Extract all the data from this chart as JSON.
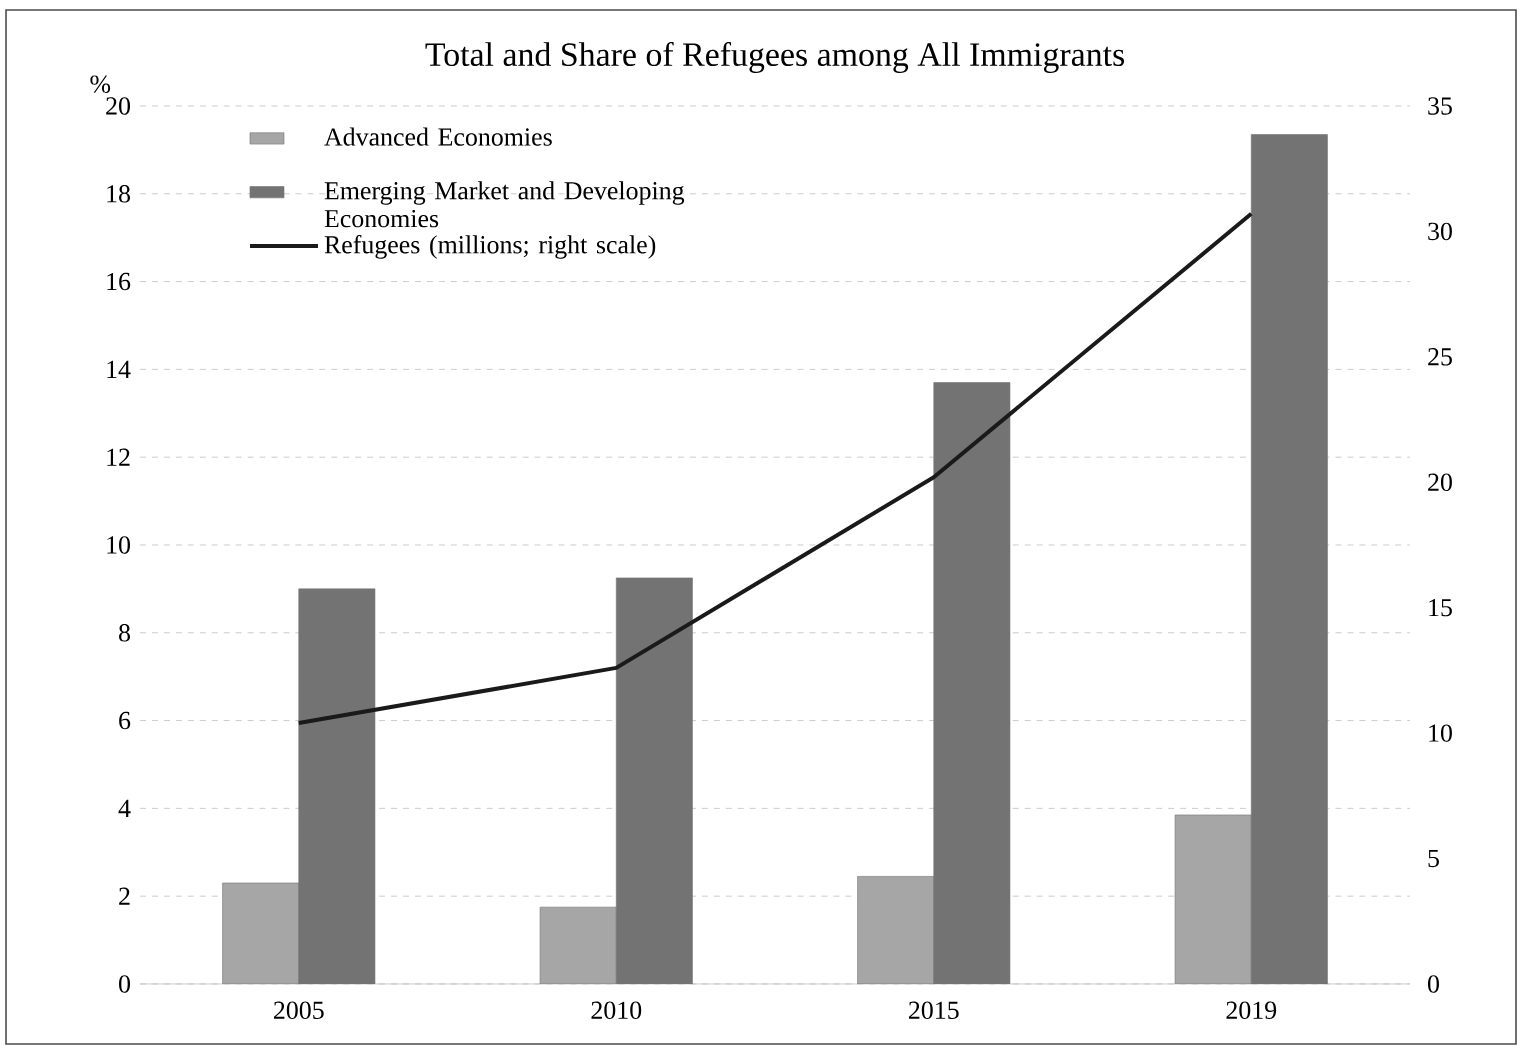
{
  "chart_data": {
    "type": "bar",
    "title": "Total and Share of Refugees among All Immigrants",
    "ylabel": "%",
    "categories": [
      "2005",
      "2010",
      "2015",
      "2019"
    ],
    "series": [
      {
        "name": "Advanced Economies",
        "color": "#a6a6a6",
        "values": [
          2.3,
          1.75,
          2.45,
          3.85
        ]
      },
      {
        "name": "Emerging Market and Developing Economies",
        "color": "#737373",
        "values": [
          9.0,
          9.25,
          13.7,
          19.35
        ]
      },
      {
        "name": "Refugees (millions; right scale)",
        "color": "#1a1a1a",
        "type": "line",
        "axis": "y2",
        "values": [
          10.4,
          12.6,
          20.2,
          30.7
        ]
      }
    ],
    "ylim": [
      0,
      20
    ],
    "yticks": [
      0,
      2,
      4,
      6,
      8,
      10,
      12,
      14,
      16,
      18,
      20
    ],
    "y2lim": [
      0,
      35
    ],
    "y2ticks": [
      0,
      5,
      10,
      15,
      20,
      25,
      30,
      35
    ],
    "grid": "y",
    "legend": "top left"
  }
}
